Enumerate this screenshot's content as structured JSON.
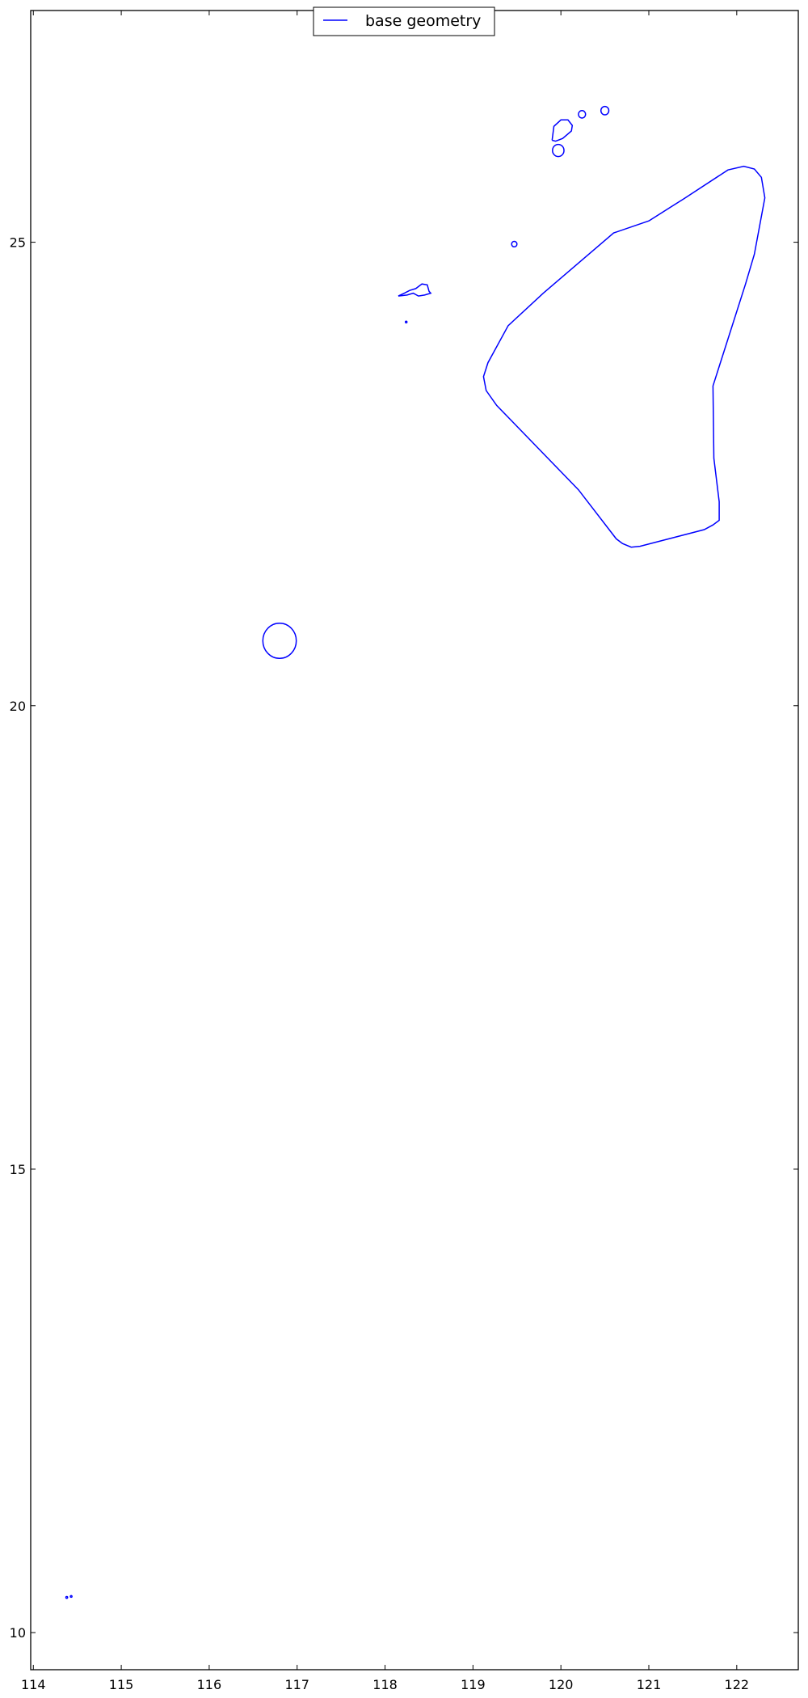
{
  "chart_data": {
    "type": "line",
    "title": "",
    "xlabel": "",
    "ylabel": "",
    "xlim": [
      113.97,
      122.7
    ],
    "ylim": [
      9.6,
      27.5
    ],
    "xticks": [
      114,
      115,
      116,
      117,
      118,
      119,
      120,
      121,
      122
    ],
    "yticks": [
      10,
      15,
      20,
      25
    ],
    "grid": false,
    "legend_position": "upper-center",
    "line_color": "#0000ff",
    "series": [
      {
        "name": "base geometry",
        "shapes": [
          {
            "id": "large-polygon",
            "points": [
              [
                121.0,
                25.23
              ],
              [
                121.4,
                25.47
              ],
              [
                121.9,
                25.78
              ],
              [
                122.08,
                25.82
              ],
              [
                122.2,
                25.79
              ],
              [
                122.28,
                25.7
              ],
              [
                122.32,
                25.48
              ],
              [
                122.2,
                24.87
              ],
              [
                122.1,
                24.55
              ],
              [
                121.73,
                23.45
              ],
              [
                121.74,
                22.67
              ],
              [
                121.8,
                22.2
              ],
              [
                121.8,
                22.0
              ],
              [
                121.73,
                21.95
              ],
              [
                121.63,
                21.9
              ],
              [
                120.9,
                21.72
              ],
              [
                120.8,
                21.71
              ],
              [
                120.7,
                21.75
              ],
              [
                120.63,
                21.8
              ],
              [
                120.2,
                22.33
              ],
              [
                119.27,
                23.24
              ],
              [
                119.15,
                23.4
              ],
              [
                119.12,
                23.55
              ],
              [
                119.17,
                23.7
              ],
              [
                119.4,
                24.1
              ],
              [
                119.8,
                24.45
              ],
              [
                120.6,
                25.1
              ],
              [
                121.0,
                25.23
              ]
            ]
          },
          {
            "id": "circle-island",
            "center": [
              116.8,
              20.7
            ],
            "radius": 0.19
          },
          {
            "id": "north-island-1",
            "points": [
              [
                119.9,
                26.1
              ],
              [
                119.92,
                26.25
              ],
              [
                120.0,
                26.32
              ],
              [
                120.08,
                26.32
              ],
              [
                120.13,
                26.26
              ],
              [
                120.12,
                26.2
              ],
              [
                120.02,
                26.12
              ],
              [
                119.94,
                26.09
              ],
              [
                119.9,
                26.1
              ]
            ]
          },
          {
            "id": "north-island-2",
            "center": [
              120.24,
              26.38
            ],
            "radius": 0.04
          },
          {
            "id": "north-island-3",
            "center": [
              120.5,
              26.42
            ],
            "radius": 0.045
          },
          {
            "id": "north-island-4",
            "center": [
              119.97,
              25.99
            ],
            "radius": 0.065
          },
          {
            "id": "small-islet",
            "center": [
              119.47,
              24.98
            ],
            "radius": 0.03
          },
          {
            "id": "coastal-strip",
            "points": [
              [
                118.15,
                24.42
              ],
              [
                118.22,
                24.45
              ],
              [
                118.28,
                24.48
              ],
              [
                118.35,
                24.5
              ],
              [
                118.42,
                24.55
              ],
              [
                118.48,
                24.54
              ],
              [
                118.5,
                24.47
              ],
              [
                118.52,
                24.45
              ],
              [
                118.45,
                24.43
              ],
              [
                118.38,
                24.42
              ],
              [
                118.32,
                24.45
              ],
              [
                118.25,
                24.43
              ],
              [
                118.15,
                24.42
              ]
            ]
          },
          {
            "id": "dot-a",
            "center": [
              118.24,
              24.14
            ],
            "radius": 0.008
          },
          {
            "id": "dot-b",
            "center": [
              114.38,
              10.38
            ],
            "radius": 0.01
          },
          {
            "id": "dot-c",
            "center": [
              114.43,
              10.39
            ],
            "radius": 0.008
          }
        ]
      }
    ]
  }
}
